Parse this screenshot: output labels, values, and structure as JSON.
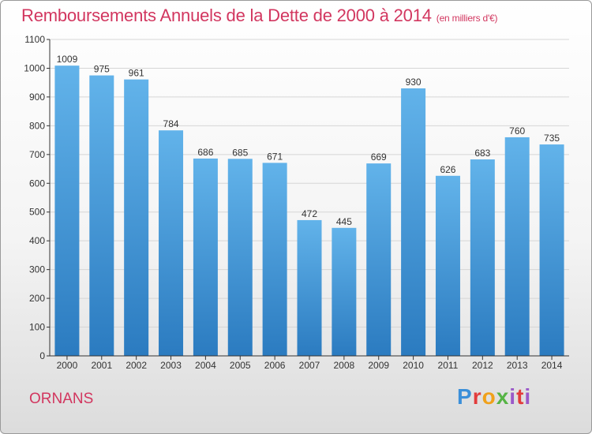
{
  "title": "Remboursements Annuels de la Dette de 2000 à 2014",
  "title_unit": "(en milliers d'€)",
  "commune": "ORNANS",
  "logo": {
    "text": "Proxiti",
    "letters": [
      "P",
      "r",
      "o",
      "x",
      "i",
      "t",
      "i"
    ]
  },
  "colors": {
    "title": "#d2365f",
    "bar_top": "#62b3ea",
    "bar_bottom": "#2b7bc0",
    "grid": "#d6d6d6",
    "axis": "#333333"
  },
  "chart_data": {
    "type": "bar",
    "categories": [
      "2000",
      "2001",
      "2002",
      "2003",
      "2004",
      "2005",
      "2006",
      "2007",
      "2008",
      "2009",
      "2010",
      "2011",
      "2012",
      "2013",
      "2014"
    ],
    "values": [
      1009,
      975,
      961,
      784,
      686,
      685,
      671,
      472,
      445,
      669,
      930,
      626,
      683,
      760,
      735
    ],
    "value_labels": [
      "1009",
      "975",
      "961",
      "784",
      "686",
      "685",
      "671",
      "472",
      "445",
      "669",
      "930",
      "626",
      "683",
      "760",
      "735"
    ],
    "yticks": [
      0,
      100,
      200,
      300,
      400,
      500,
      600,
      700,
      800,
      900,
      1000,
      1100
    ],
    "ytick_labels": [
      "0",
      "100",
      "200",
      "300",
      "400",
      "500",
      "600",
      "700",
      "800",
      "900",
      "1000",
      "1100"
    ],
    "ylim": [
      0,
      1100
    ],
    "grid": true,
    "legend": "none",
    "xlabel": "",
    "ylabel": ""
  }
}
